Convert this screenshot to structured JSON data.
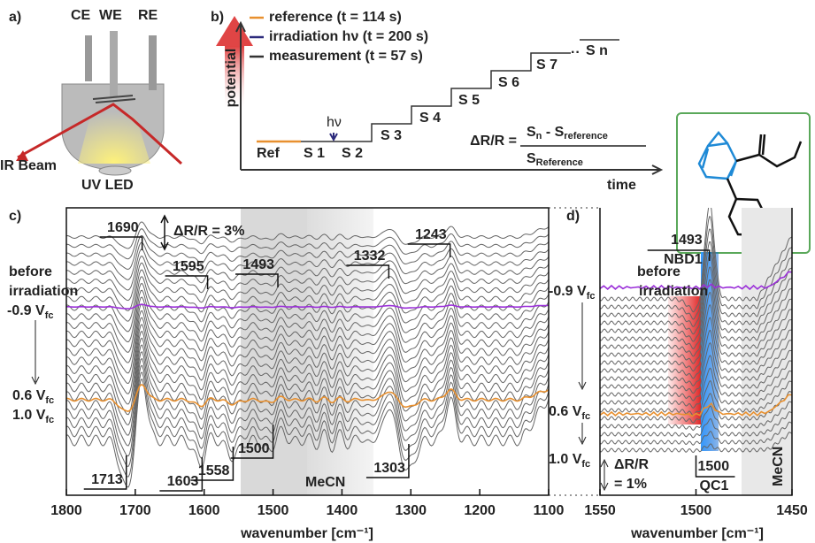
{
  "panel_a": {
    "label": "a)",
    "electrodes": [
      "CE",
      "WE",
      "RE"
    ],
    "ir_beam": "IR Beam",
    "uv_led": "UV LED"
  },
  "panel_b": {
    "label": "b)",
    "y_axis": "potential",
    "x_axis": "time",
    "legend": [
      {
        "text": "reference (t = 114 s)",
        "color": "#e8902f"
      },
      {
        "text": "irradiation hν (t = 200 s)",
        "color": "#2c2a7c"
      },
      {
        "text": "measurement (t = 57 s)",
        "color": "#333333"
      }
    ],
    "steps": [
      "Ref",
      "S 1",
      "S 2",
      "S 3",
      "S 4",
      "S 5",
      "S 6",
      "S 7",
      "S n"
    ],
    "ellipsis": "··",
    "irradiation": "hν",
    "formula": {
      "lhs": "ΔR/R =",
      "numerator": [
        "S",
        "n",
        " - S",
        "reference"
      ],
      "denominator": [
        "S",
        "Reference"
      ]
    }
  },
  "panel_c": {
    "label": "c)",
    "xlim": [
      1800,
      1100
    ],
    "xticks": [
      1800,
      1700,
      1600,
      1500,
      1400,
      1300,
      1200,
      1100
    ],
    "x_axis": "wavenumber [cm⁻¹]",
    "peaks_up": [
      1690,
      1595,
      1493,
      1332,
      1243
    ],
    "peaks_down": [
      1713,
      1603,
      1558,
      1500,
      1303
    ],
    "scale_bar": "ΔR/R = 3%",
    "before": [
      "before",
      "irradiation"
    ],
    "potentials": [
      {
        "text": "-0.9 V",
        "sub": "fc",
        "color": "#333333"
      },
      {
        "text": "0.6 V",
        "sub": "fc",
        "color": "#e8902f"
      },
      {
        "text": "1.0 V",
        "sub": "fc",
        "color": "#333333"
      }
    ],
    "solvent": "MeCN",
    "before_color": "#9b30d9"
  },
  "panel_d": {
    "label": "d)",
    "xlim": [
      1550,
      1450
    ],
    "xticks": [
      1550,
      1500,
      1450
    ],
    "x_axis": "wavenumber [cm⁻¹]",
    "peak_up": {
      "value": 1493,
      "name": "NBD1"
    },
    "peak_down": {
      "value": 1500,
      "name": "QC1"
    },
    "scale_bar": [
      "ΔR/R",
      "= 1%"
    ],
    "before": [
      "before",
      "irradiation"
    ],
    "potentials": [
      {
        "text": "-0.9 V",
        "sub": "fc",
        "color": "#333333"
      },
      {
        "text": "0.6 V",
        "sub": "fc",
        "color": "#e8902f"
      },
      {
        "text": "1.0 V",
        "sub": "fc",
        "color": "#333333"
      }
    ],
    "solvent": "MeCN"
  }
}
